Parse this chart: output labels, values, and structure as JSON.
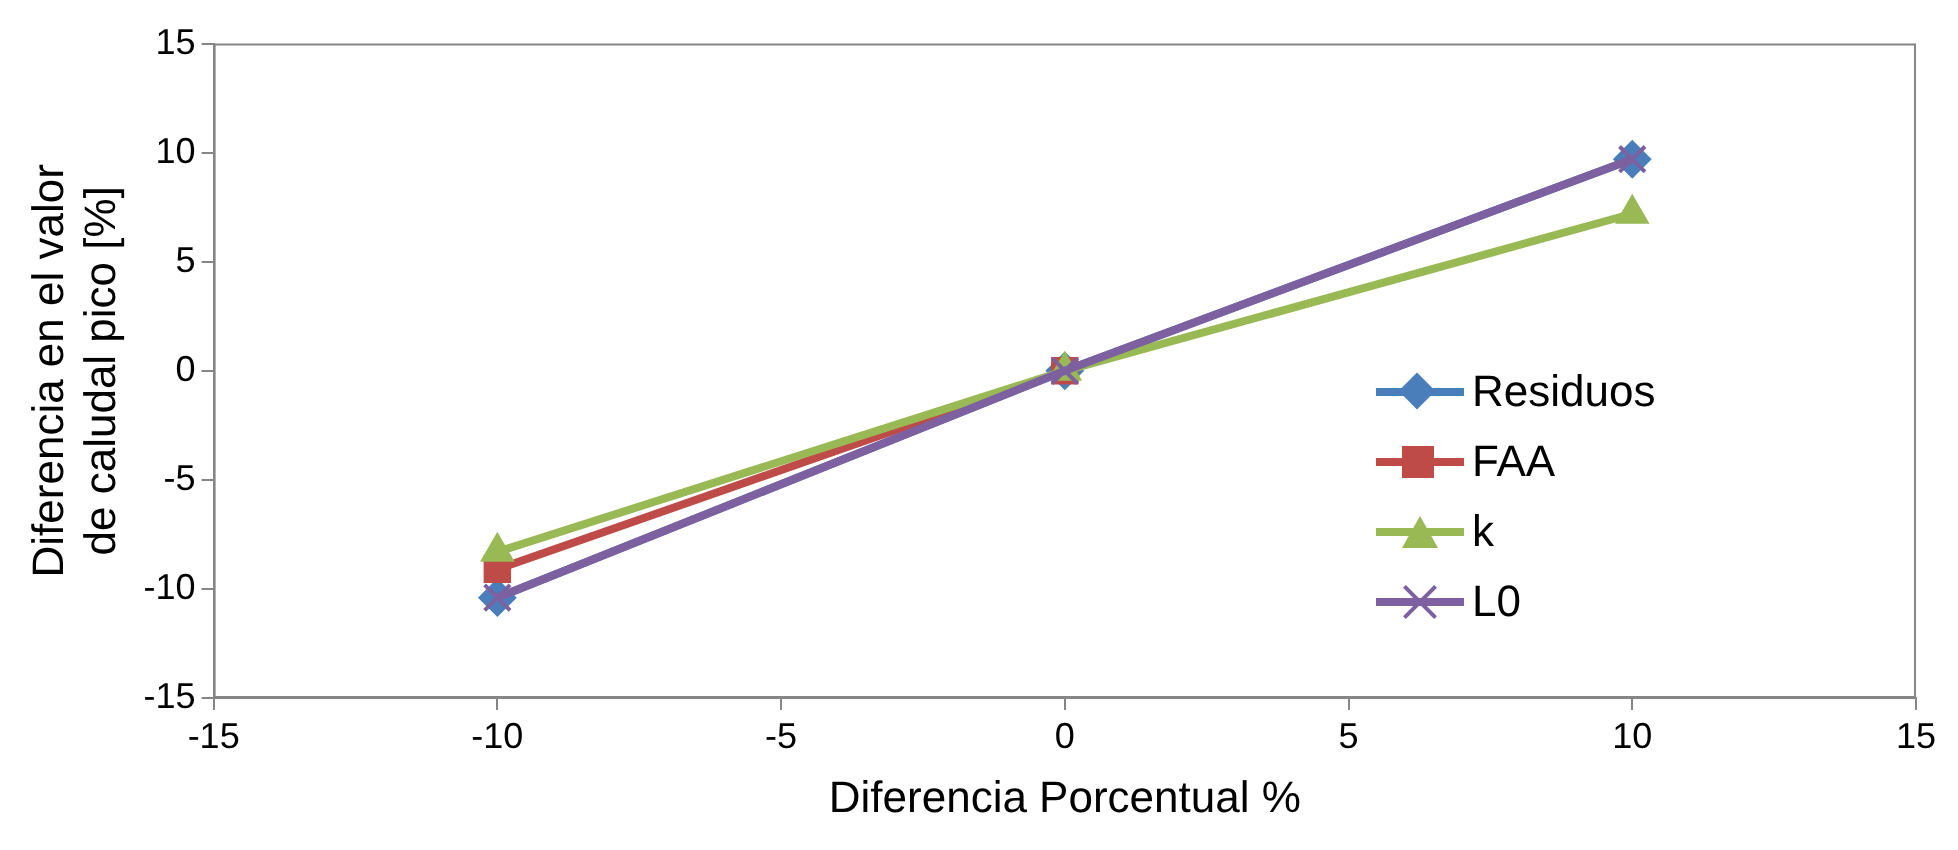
{
  "chart_data": {
    "type": "line",
    "xlabel": "Diferencia Porcentual %",
    "ylabel": "Diferencia en el valor de caludal pico [%]",
    "x": [
      -10,
      0,
      10
    ],
    "series": [
      {
        "name": "Residuos",
        "color": "#4a7ebb",
        "marker": "diamond",
        "values": [
          -10.4,
          0,
          9.7
        ]
      },
      {
        "name": "FAA",
        "color": "#be4b48",
        "marker": "square",
        "values": [
          -9.1,
          0,
          null
        ]
      },
      {
        "name": "k",
        "color": "#98b954",
        "marker": "triangle",
        "values": [
          -8.3,
          0,
          7.2
        ]
      },
      {
        "name": "L0",
        "color": "#7d60a0",
        "marker": "cross",
        "values": [
          -10.4,
          0,
          9.7
        ]
      }
    ],
    "xlim": [
      -15,
      15
    ],
    "xticks": [
      -15,
      -10,
      -5,
      0,
      5,
      10,
      15
    ],
    "ylim": [
      -15,
      15
    ],
    "yticks": [
      -15,
      -10,
      -5,
      0,
      5,
      10,
      15
    ],
    "grid": false,
    "legend": "right"
  }
}
